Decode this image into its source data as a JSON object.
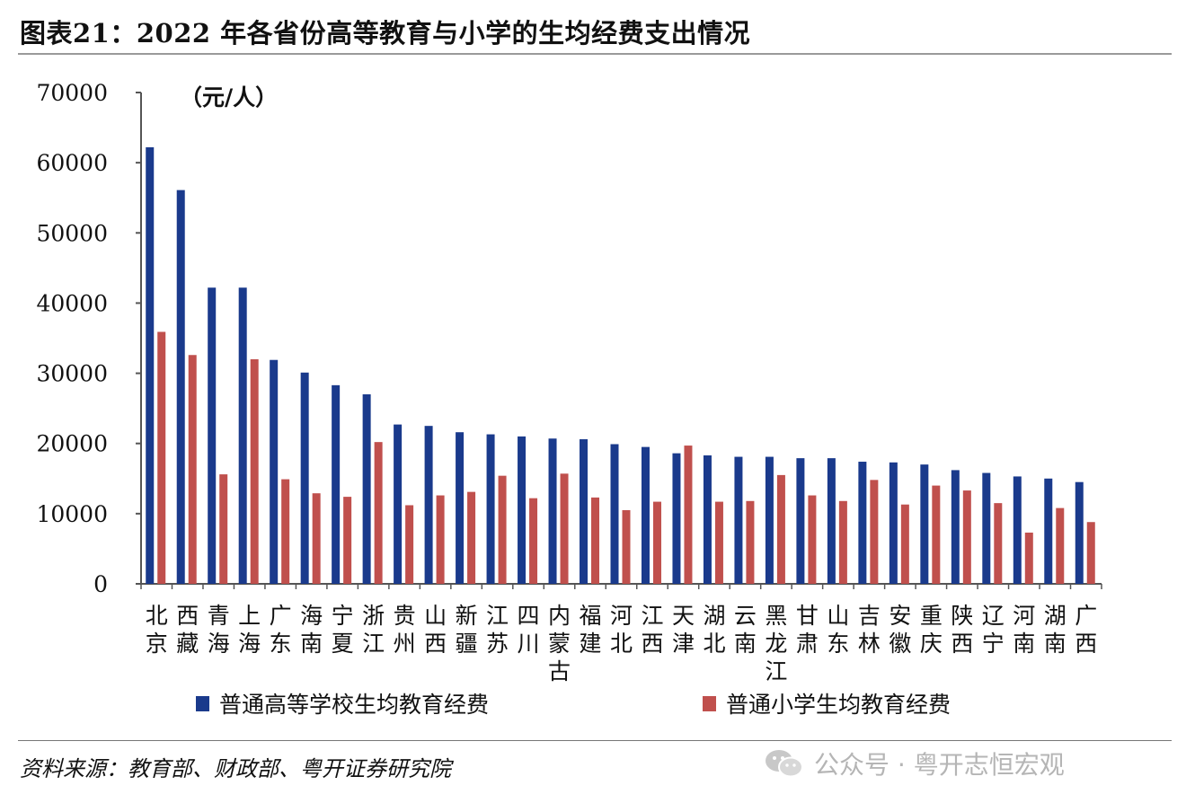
{
  "title": "图表21：2022 年各省份高等教育与小学的生均经费支出情况",
  "source": "资料来源：教育部、财政部、粤开证券研究院",
  "watermark": {
    "text": "公众号 · 粤开志恒宏观",
    "icon": "wechat-icon"
  },
  "colors": {
    "series1": "#1a3a8c",
    "series2": "#c0504d",
    "axis": "#555555"
  },
  "chart_data": {
    "type": "bar",
    "unit_label": "（元/人）",
    "ylim": [
      0,
      70000
    ],
    "yticks": [
      0,
      10000,
      20000,
      30000,
      40000,
      50000,
      60000,
      70000
    ],
    "grid": false,
    "legend_position": "bottom",
    "categories": [
      "北京",
      "西藏",
      "青海",
      "上海",
      "广东",
      "海南",
      "宁夏",
      "浙江",
      "贵州",
      "山西",
      "新疆",
      "江苏",
      "四川",
      "内蒙古",
      "福建",
      "河北",
      "江西",
      "天津",
      "湖北",
      "云南",
      "黑龙江",
      "甘肃",
      "山东",
      "吉林",
      "安徽",
      "重庆",
      "陕西",
      "辽宁",
      "河南",
      "湖南",
      "广西"
    ],
    "series": [
      {
        "name": "普通高等学校生均教育经费",
        "values": [
          62200,
          56100,
          42200,
          42200,
          31900,
          30100,
          28300,
          27000,
          22700,
          22500,
          21600,
          21300,
          21000,
          20700,
          20600,
          19900,
          19500,
          18600,
          18300,
          18100,
          18100,
          17900,
          17900,
          17400,
          17300,
          17000,
          16200,
          15800,
          15300,
          15000,
          14500
        ]
      },
      {
        "name": "普通小学生均教育经费",
        "values": [
          35900,
          32600,
          15600,
          32000,
          14900,
          12900,
          12400,
          20200,
          11200,
          12600,
          13100,
          15400,
          12200,
          15700,
          12300,
          10500,
          11700,
          19700,
          11700,
          11800,
          15500,
          12600,
          11800,
          14800,
          11300,
          14000,
          13300,
          11500,
          7300,
          10800,
          8800
        ]
      }
    ]
  }
}
